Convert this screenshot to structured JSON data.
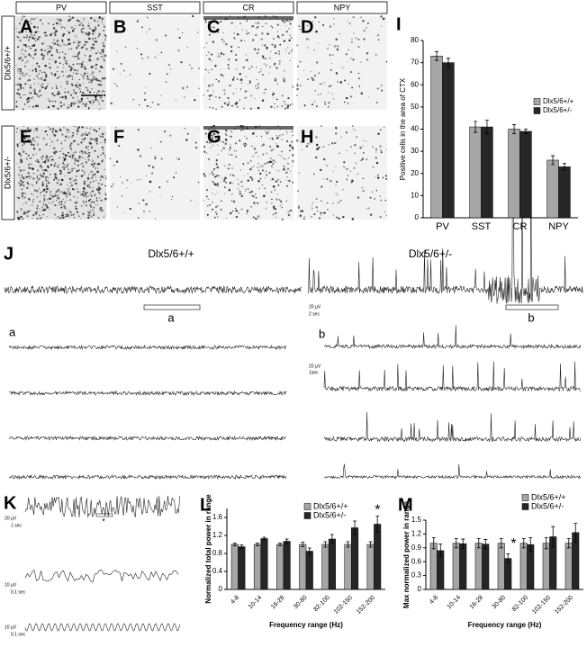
{
  "figure": {
    "image_panel": {
      "column_headers": [
        "PV",
        "SST",
        "CR",
        "NPY"
      ],
      "row_labels": [
        "Dlx5/6+/+",
        "Dlx5/6+/-"
      ],
      "panel_labels": [
        "A",
        "B",
        "C",
        "D",
        "E",
        "F",
        "G",
        "H"
      ]
    },
    "recordings": {
      "panel_label": "J",
      "genotypes": [
        "Dlx5/6+/+",
        "Dlx5/6+/-"
      ],
      "segment_labels": [
        "a",
        "b"
      ],
      "scale_labels": [
        "20 µV",
        "2 sec",
        "20 µV",
        "1sec"
      ]
    },
    "spectra": {
      "panel_label": "K",
      "scale_labels": [
        "20 µV",
        "1 sec",
        "10 µV",
        "0.1 sec",
        "10 µV",
        "0.1 sec"
      ],
      "marker": "*"
    }
  },
  "chart_data": [
    {
      "type": "bar",
      "panel_label": "I",
      "y_label": "Positive cells in the area of CTX",
      "categories": [
        "PV",
        "SST",
        "CR",
        "NPY"
      ],
      "series": [
        {
          "name": "Dlx5/6+/+",
          "color": "#a6a6a6",
          "values": [
            73,
            41,
            40,
            26
          ],
          "errors": [
            2,
            2.5,
            2,
            2
          ]
        },
        {
          "name": "Dlx5/6+/-",
          "color": "#262626",
          "values": [
            70,
            41,
            39,
            23
          ],
          "errors": [
            2,
            3,
            1,
            1.5
          ]
        }
      ],
      "ylim": [
        0,
        80
      ],
      "yticks": [
        0,
        10,
        20,
        30,
        40,
        50,
        60,
        70,
        80
      ],
      "legend": "right"
    },
    {
      "type": "bar",
      "panel_label": "L",
      "y_label": "Normalized total power in range",
      "x_label": "Frequency range (Hz)",
      "categories": [
        "4-8",
        "10-14",
        "16-28",
        "30-80",
        "82-100",
        "102-150",
        "152-200"
      ],
      "series": [
        {
          "name": "Dlx5/6+/+",
          "color": "#a6a6a6",
          "values": [
            1,
            1,
            1,
            1,
            1,
            1,
            1
          ],
          "errors": [
            0.03,
            0.03,
            0.03,
            0.05,
            0.06,
            0.06,
            0.06
          ]
        },
        {
          "name": "Dlx5/6+/-",
          "color": "#262626",
          "values": [
            0.95,
            1.13,
            1.07,
            0.85,
            1.12,
            1.37,
            1.45
          ],
          "errors": [
            0.04,
            0.03,
            0.05,
            0.07,
            0.1,
            0.15,
            0.18
          ]
        }
      ],
      "ylim": [
        0,
        1.8
      ],
      "yticks": [
        0,
        0.4,
        0.8,
        1.2,
        1.6
      ],
      "legend": "top-right",
      "annotations": [
        {
          "text": "*",
          "category": "152-200"
        }
      ]
    },
    {
      "type": "bar",
      "panel_label": "M",
      "y_label": "Max normalized power in range",
      "x_label": "Frequency range (Hz)",
      "categories": [
        "4-8",
        "10-14",
        "16-28",
        "30-80",
        "82-100",
        "102-150",
        "152-200"
      ],
      "series": [
        {
          "name": "Dlx5/6+/+",
          "color": "#a6a6a6",
          "values": [
            1,
            1,
            1,
            1,
            1,
            1,
            1
          ],
          "errors": [
            0.12,
            0.1,
            0.1,
            0.1,
            0.1,
            0.12,
            0.1
          ]
        },
        {
          "name": "Dlx5/6+/-",
          "color": "#262626",
          "values": [
            0.84,
            0.99,
            0.98,
            0.67,
            0.97,
            1.14,
            1.23
          ],
          "errors": [
            0.14,
            0.1,
            0.1,
            0.1,
            0.15,
            0.22,
            0.2
          ]
        }
      ],
      "ylim": [
        0,
        1.5
      ],
      "yticks": [
        0,
        0.3,
        0.6,
        0.9,
        1.2,
        1.5
      ],
      "legend": "top-right",
      "annotations": [
        {
          "text": "*",
          "category": "30-80"
        }
      ]
    }
  ]
}
